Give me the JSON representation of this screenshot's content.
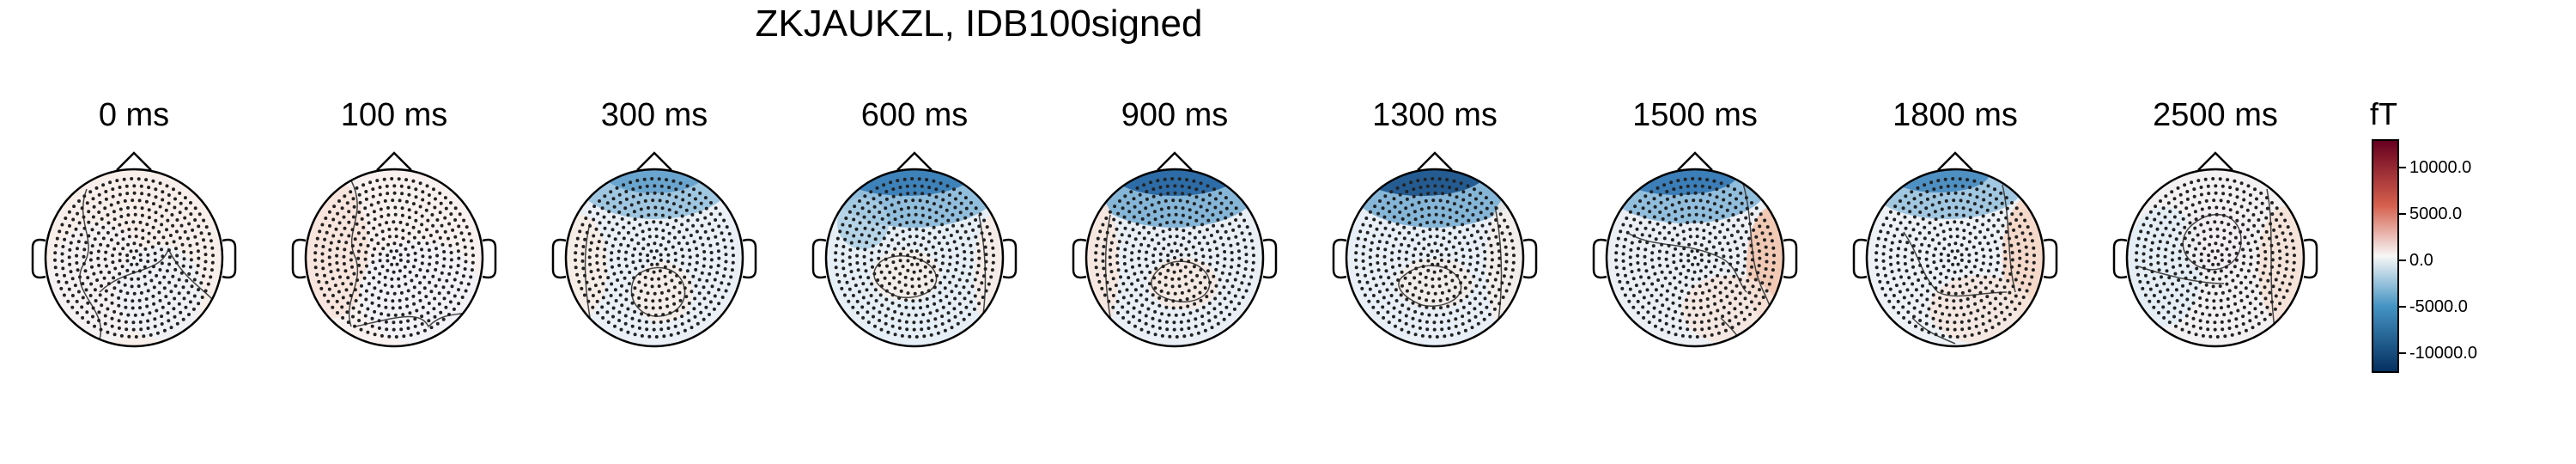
{
  "figure": {
    "title": "ZKJAUKZL, IDB100signed"
  },
  "panels": [
    {
      "time_label": "0 ms"
    },
    {
      "time_label": "100 ms"
    },
    {
      "time_label": "300 ms"
    },
    {
      "time_label": "600 ms"
    },
    {
      "time_label": "900 ms"
    },
    {
      "time_label": "1300 ms"
    },
    {
      "time_label": "1500 ms"
    },
    {
      "time_label": "1800 ms"
    },
    {
      "time_label": "2500 ms"
    }
  ],
  "colorbar": {
    "unit": "fT",
    "tick_labels": [
      "10000.0",
      "5000.0",
      "0.0",
      "-5000.0",
      "-10000.0"
    ],
    "range": [
      -12000,
      12000
    ],
    "colors": {
      "max": "#67001f",
      "pos": "#d6604d",
      "zero": "#f7f7f7",
      "neg": "#4393c3",
      "min": "#053061"
    }
  }
}
